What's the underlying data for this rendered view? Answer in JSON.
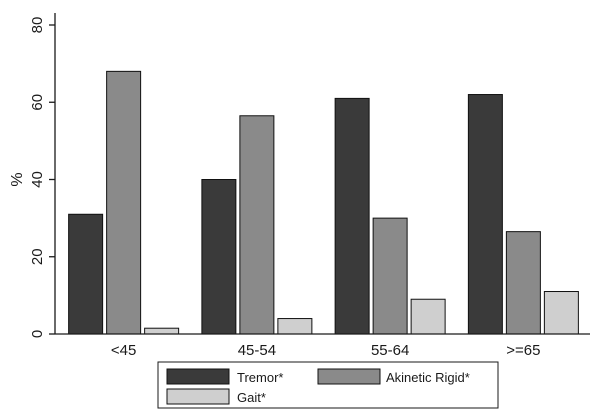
{
  "chart_data": {
    "type": "bar",
    "ylabel": "%",
    "ylim": [
      0,
      80
    ],
    "yticks": [
      0,
      20,
      40,
      60,
      80
    ],
    "categories": [
      "<45",
      "45-54",
      "55-64",
      ">=65"
    ],
    "series": [
      {
        "name": "Tremor*",
        "values": [
          31,
          40,
          61,
          62
        ],
        "color": "#3a3a3a"
      },
      {
        "name": "Akinetic Rigid*",
        "values": [
          68,
          56.5,
          30,
          26.5
        ],
        "color": "#8a8a8a"
      },
      {
        "name": "Gait*",
        "values": [
          1.5,
          4,
          9,
          11
        ],
        "color": "#cfcfcf"
      }
    ],
    "legend_position": "bottom",
    "grid": false
  }
}
